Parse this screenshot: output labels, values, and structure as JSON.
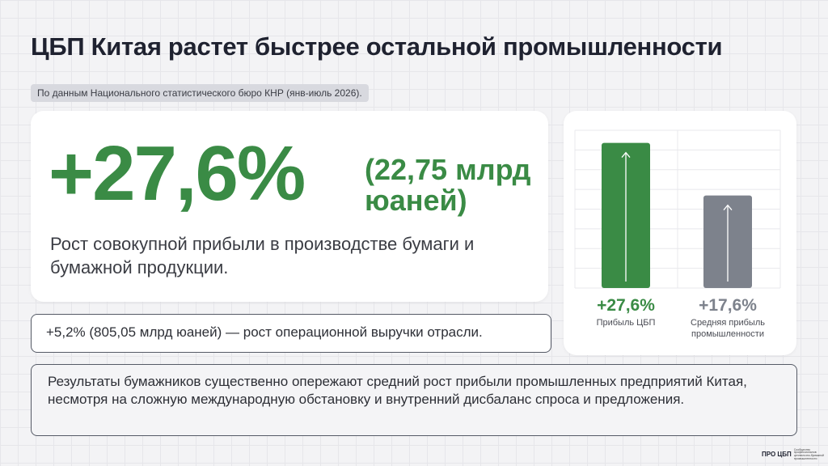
{
  "header": {
    "title": "ЦБП Китая растет быстрее остальной промышленности",
    "source": "По данным Национального статистического бюро КНР (янв-июль 2026)."
  },
  "hero": {
    "value": "+27,6%",
    "value_detail": "(22,75 млрд юаней)",
    "description": "Рост совокупной прибыли в производстве бумаги и бумажной продукции."
  },
  "revenue_note": "+5,2% (805,05 млрд юаней) — рост операционной выручки отрасли.",
  "summary": "Результаты бумажников существенно опережают средний рост прибыли промышленных предприятий Китая, несмотря на сложную международную обстановку и внутренний дисбаланс спроса и предложения.",
  "chart_data": {
    "type": "bar",
    "title": "",
    "xlabel": "",
    "ylabel": "",
    "ylim": [
      0,
      30
    ],
    "grid": true,
    "categories": [
      "Прибыль ЦБП",
      "Средняя прибыль промышленности"
    ],
    "values": [
      27.6,
      17.6
    ],
    "value_labels": [
      "+27,6%",
      "+17,6%"
    ],
    "colors": [
      "#3a8b45",
      "#7d828c"
    ],
    "label_colors": [
      "#3a8b45",
      "#7d828c"
    ],
    "arrow_icon": "arrow-up-icon"
  },
  "logo": {
    "mark": "ПРО ЦБП",
    "tagline": "Сообщество профессионалов целлюлозно-бумажной промышленности"
  }
}
